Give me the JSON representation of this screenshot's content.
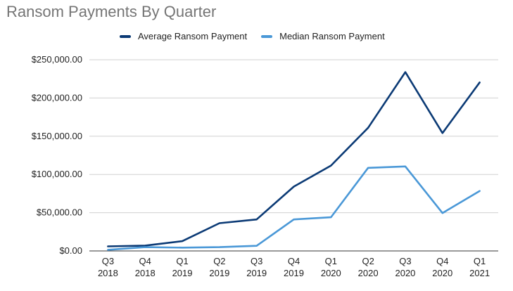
{
  "chart_data": {
    "type": "line",
    "title": "Ransom Payments By Quarter",
    "categories": [
      [
        "Q3",
        "2018"
      ],
      [
        "Q4",
        "2018"
      ],
      [
        "Q1",
        "2019"
      ],
      [
        "Q2",
        "2019"
      ],
      [
        "Q3",
        "2019"
      ],
      [
        "Q4",
        "2019"
      ],
      [
        "Q1",
        "2020"
      ],
      [
        "Q2",
        "2020"
      ],
      [
        "Q3",
        "2020"
      ],
      [
        "Q4",
        "2020"
      ],
      [
        "Q1",
        "2021"
      ]
    ],
    "series": [
      {
        "name": "Average Ransom Payment",
        "color": "#0b3a75",
        "values": [
          6000,
          7000,
          12800,
          36300,
          41200,
          84100,
          111600,
          161000,
          233800,
          154100,
          220300
        ]
      },
      {
        "name": "Median Ransom Payment",
        "color": "#4a98d7",
        "values": [
          1500,
          5000,
          4300,
          5000,
          6700,
          41200,
          44000,
          108600,
          110500,
          49500,
          78400
        ]
      }
    ],
    "ylim": [
      0,
      250000
    ],
    "yticks": [
      {
        "value": 0,
        "label": "$0.00"
      },
      {
        "value": 50000,
        "label": "$50,000.00"
      },
      {
        "value": 100000,
        "label": "$100,000.00"
      },
      {
        "value": 150000,
        "label": "$150,000.00"
      },
      {
        "value": 200000,
        "label": "$200,000.00"
      },
      {
        "value": 250000,
        "label": "$250,000.00"
      }
    ],
    "grid": true,
    "legend_position": "top"
  }
}
